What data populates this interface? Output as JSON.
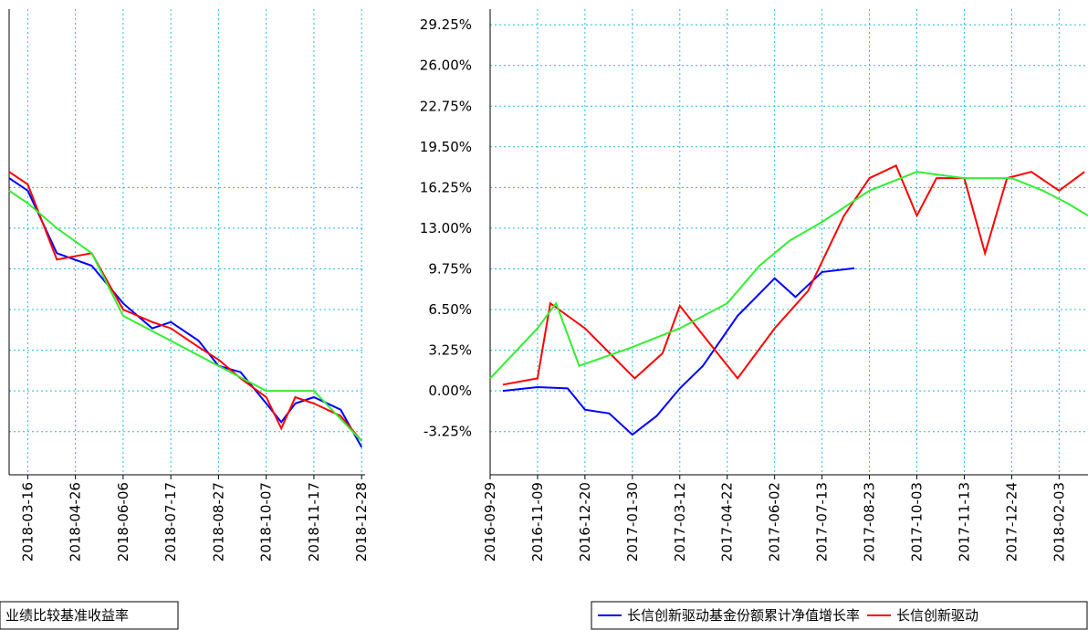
{
  "chart_data": [
    {
      "type": "line",
      "xticks": [
        "2016-09-29",
        "2016-11-09",
        "2016-12-20",
        "2017-01-30",
        "2017-03-12",
        "2017-04-22",
        "2017-06-02",
        "2017-07-13",
        "2017-08-23",
        "2017-10-03",
        "2017-11-13",
        "2017-12-24",
        "2018-02-03"
      ],
      "xlim": [
        "2016-09-29",
        "2018-02-28"
      ],
      "ylim": [
        -6.7,
        30.5
      ],
      "yticks": [
        {
          "value": -3.25,
          "label": "-3.25%"
        },
        {
          "value": 0,
          "label": "0.00%"
        },
        {
          "value": 3.25,
          "label": "3.25%"
        },
        {
          "value": 6.5,
          "label": "6.50%"
        },
        {
          "value": 9.75,
          "label": "9.75%"
        },
        {
          "value": 13,
          "label": "13.00%"
        },
        {
          "value": 16.25,
          "label": "16.25%"
        },
        {
          "value": 19.5,
          "label": "19.50%"
        },
        {
          "value": 22.75,
          "label": "22.75%"
        },
        {
          "value": 26,
          "label": "26.00%"
        },
        {
          "value": 29.25,
          "label": "29.25%"
        }
      ],
      "grid": true,
      "series": [
        {
          "name": "长信创新驱动基金份额累计净值增长率",
          "color": "#0000ff",
          "x": [
            "2016-10-10",
            "2016-11-09",
            "2016-12-05",
            "2016-12-20",
            "2017-01-10",
            "2017-01-30",
            "2017-02-20",
            "2017-03-12",
            "2017-04-01",
            "2017-05-01",
            "2017-06-02",
            "2017-06-20",
            "2017-07-13",
            "2017-08-10"
          ],
          "values": [
            0,
            0.3,
            0.2,
            -1.5,
            -1.8,
            -3.5,
            -2,
            0.2,
            2,
            6,
            9,
            7.5,
            9.5,
            9.8
          ]
        },
        {
          "name": "长信创新驱动",
          "color": "#ff0000",
          "x": [
            "2016-10-10",
            "2016-11-09",
            "2016-11-20",
            "2016-12-20",
            "2017-02-01",
            "2017-02-25",
            "2017-03-12",
            "2017-04-05",
            "2017-05-01",
            "2017-06-02",
            "2017-07-01",
            "2017-08-01",
            "2017-08-23",
            "2017-09-15",
            "2017-10-03",
            "2017-10-20",
            "2017-11-13",
            "2017-12-01",
            "2017-12-20",
            "2018-01-10",
            "2018-02-03",
            "2018-02-25"
          ],
          "values": [
            0.5,
            1,
            7,
            5,
            1,
            3,
            6.8,
            4,
            1,
            5,
            8,
            14,
            17,
            18,
            14,
            17,
            17,
            11,
            17,
            17.5,
            16,
            17.5
          ]
        },
        {
          "name": "业绩比较基准收益率",
          "color": "#33ee33",
          "x": [
            "2016-09-29",
            "2016-11-09",
            "2016-11-25",
            "2016-12-15",
            "2017-01-30",
            "2017-03-12",
            "2017-04-22",
            "2017-05-20",
            "2017-06-15",
            "2017-07-13",
            "2017-08-23",
            "2017-10-03",
            "2017-11-13",
            "2017-12-24",
            "2018-01-20",
            "2018-02-10",
            "2018-02-28"
          ],
          "values": [
            1,
            5,
            7,
            2,
            3.5,
            5,
            7,
            10,
            12,
            13.5,
            16,
            17.5,
            17,
            17,
            16,
            15,
            14
          ]
        }
      ]
    },
    {
      "type": "line",
      "xticks": [
        "2018-03-16",
        "2018-04-26",
        "2018-06-06",
        "2018-07-17",
        "2018-08-27",
        "2018-10-07",
        "2018-11-17",
        "2018-12-28"
      ],
      "xlim": [
        "2018-02-28",
        "2018-12-31"
      ],
      "ylim": [
        -6.7,
        30.5
      ],
      "yticks": [
        -3.25,
        0,
        3.25,
        6.5,
        9.75,
        13,
        16.25
      ],
      "grid": true,
      "series": [
        {
          "color": "#0000ff",
          "x": [
            "2018-02-28",
            "2018-03-16",
            "2018-04-10",
            "2018-05-10",
            "2018-06-06",
            "2018-07-01",
            "2018-07-17",
            "2018-08-10",
            "2018-08-27",
            "2018-09-15",
            "2018-10-07",
            "2018-10-20",
            "2018-11-01",
            "2018-11-17",
            "2018-12-10",
            "2018-12-28"
          ],
          "values": [
            17,
            16,
            11,
            10,
            7,
            5,
            5.5,
            4,
            2,
            1.5,
            -1,
            -2.5,
            -1,
            -0.5,
            -1.5,
            -4.5
          ]
        },
        {
          "color": "#ff0000",
          "x": [
            "2018-02-28",
            "2018-03-16",
            "2018-04-10",
            "2018-05-10",
            "2018-06-06",
            "2018-07-01",
            "2018-07-17",
            "2018-08-10",
            "2018-08-27",
            "2018-09-15",
            "2018-10-07",
            "2018-10-20",
            "2018-11-01",
            "2018-11-17",
            "2018-12-10",
            "2018-12-28"
          ],
          "values": [
            17.5,
            16.5,
            10.5,
            11,
            6.5,
            5.5,
            5,
            3.5,
            2.5,
            1,
            -0.5,
            -3,
            -0.5,
            -1,
            -2,
            -4
          ]
        },
        {
          "color": "#33ee33",
          "x": [
            "2018-02-28",
            "2018-03-16",
            "2018-04-10",
            "2018-05-10",
            "2018-06-06",
            "2018-07-17",
            "2018-08-27",
            "2018-10-07",
            "2018-11-17",
            "2018-12-28"
          ],
          "values": [
            16,
            15,
            13,
            11,
            6,
            4,
            2,
            0,
            0,
            -4
          ]
        }
      ]
    }
  ]
}
